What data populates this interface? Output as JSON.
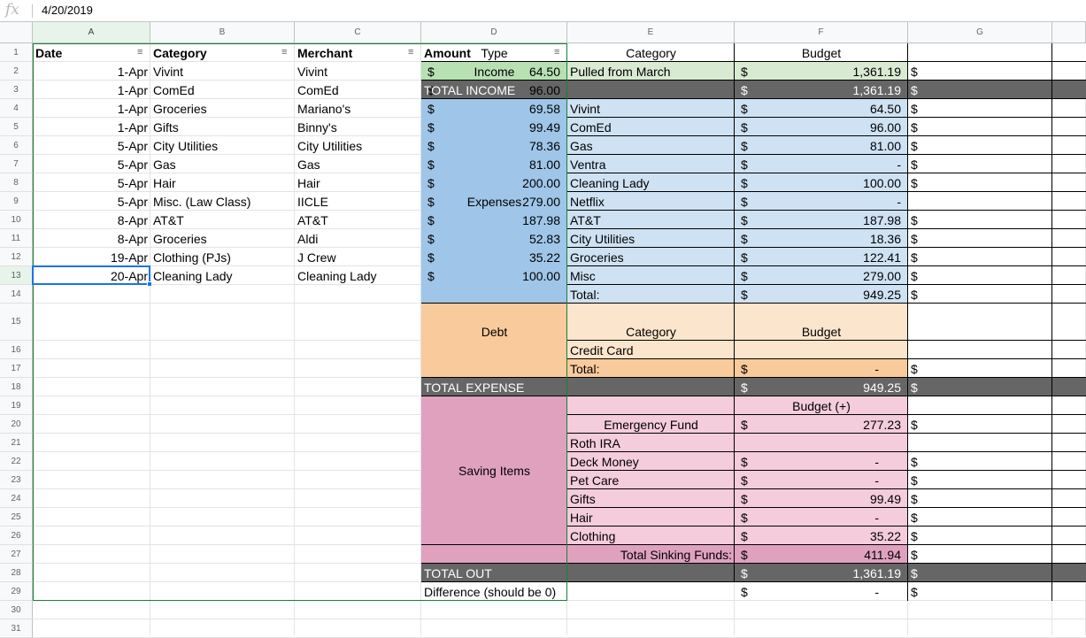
{
  "formula_bar": {
    "fx": "fx",
    "value": "4/20/2019"
  },
  "column_headers": [
    "A",
    "B",
    "C",
    "D",
    "E",
    "F",
    "G"
  ],
  "row_numbers": [
    "1",
    "2",
    "3",
    "4",
    "5",
    "6",
    "7",
    "8",
    "9",
    "10",
    "11",
    "12",
    "13",
    "14",
    "15",
    "16",
    "17",
    "18",
    "19",
    "20",
    "21",
    "22",
    "23",
    "24",
    "25",
    "26",
    "27",
    "28",
    "29",
    "30",
    "31"
  ],
  "colors": {
    "income": "#b7e1b3",
    "income_light": "#d9ead3",
    "gray_bar": "#666666",
    "expenses": "#9fc5e8",
    "expenses_light": "#cfe2f3",
    "debt": "#f9cb9c",
    "debt_light": "#fce5cd",
    "saving": "#e0a1bf",
    "saving_light": "#f4ccdb",
    "selection": "#1a73e8"
  },
  "transactions": {
    "headers": {
      "date": "Date",
      "category": "Category",
      "merchant": "Merchant",
      "amount": "Amount"
    },
    "currency": "$",
    "rows": [
      {
        "date": "1-Apr",
        "category": "Vivint",
        "merchant": "Vivint",
        "amount": "64.50"
      },
      {
        "date": "1-Apr",
        "category": "ComEd",
        "merchant": "ComEd",
        "amount": "96.00"
      },
      {
        "date": "1-Apr",
        "category": "Groceries",
        "merchant": "Mariano's",
        "amount": "69.58"
      },
      {
        "date": "1-Apr",
        "category": "Gifts",
        "merchant": "Binny's",
        "amount": "99.49"
      },
      {
        "date": "5-Apr",
        "category": "City Utilities",
        "merchant": "City Utilities",
        "amount": "78.36"
      },
      {
        "date": "5-Apr",
        "category": "Gas",
        "merchant": "Gas",
        "amount": "81.00"
      },
      {
        "date": "5-Apr",
        "category": "Hair",
        "merchant": "Hair",
        "amount": "200.00"
      },
      {
        "date": "5-Apr",
        "category": "Misc. (Law Class)",
        "merchant": "IICLE",
        "amount": "279.00"
      },
      {
        "date": "8-Apr",
        "category": "AT&T",
        "merchant": "AT&T",
        "amount": "187.98"
      },
      {
        "date": "8-Apr",
        "category": "Groceries",
        "merchant": "Aldi",
        "amount": "52.83"
      },
      {
        "date": "19-Apr",
        "category": "Clothing (PJs)",
        "merchant": "J Crew",
        "amount": "35.22"
      },
      {
        "date": "20-Apr",
        "category": "Cleaning Lady",
        "merchant": "Cleaning Lady",
        "amount": "100.00"
      }
    ]
  },
  "budget": {
    "headers": {
      "type": "Type",
      "category": "Category",
      "budget": "Budget"
    },
    "currency": "$",
    "income": {
      "type": "Income",
      "category": "Pulled from March",
      "budget": "1,361.19"
    },
    "total_income": {
      "label": "TOTAL INCOME",
      "budget": "1,361.19"
    },
    "expenses_label": "Expenses",
    "expenses": [
      {
        "category": "Vivint",
        "budget": "64.50"
      },
      {
        "category": "ComEd",
        "budget": "96.00"
      },
      {
        "category": "Gas",
        "budget": "81.00"
      },
      {
        "category": "Ventra",
        "budget": "-"
      },
      {
        "category": "Cleaning Lady",
        "budget": "100.00"
      },
      {
        "category": "Netflix",
        "budget": "-"
      },
      {
        "category": "AT&T",
        "budget": "187.98"
      },
      {
        "category": "City Utilities",
        "budget": "18.36"
      },
      {
        "category": "Groceries",
        "budget": "122.41"
      },
      {
        "category": "Misc",
        "budget": "279.00"
      },
      {
        "category": "Total:",
        "budget": "949.25"
      }
    ],
    "debt_label": "Debt",
    "debt_headers": {
      "category": "Category",
      "budget": "Budget"
    },
    "debt": [
      {
        "category": "Credit Card",
        "budget": ""
      },
      {
        "category": "Total:",
        "budget": "-"
      }
    ],
    "total_expense": {
      "label": "TOTAL EXPENSE",
      "budget": "949.25"
    },
    "saving_label": "Saving Items",
    "saving_header": "Budget  (+)",
    "saving": [
      {
        "category": "Emergency Fund",
        "budget": "277.23"
      },
      {
        "category": "Roth IRA",
        "budget": ""
      },
      {
        "category": "Deck Money",
        "budget": "-"
      },
      {
        "category": "Pet Care",
        "budget": "-"
      },
      {
        "category": "Gifts",
        "budget": "99.49"
      },
      {
        "category": "Hair",
        "budget": "-"
      },
      {
        "category": "Clothing",
        "budget": "35.22"
      }
    ],
    "total_sinking": {
      "label": "Total Sinking Funds:",
      "budget": "411.94"
    },
    "total_out": {
      "label": "TOTAL OUT",
      "budget": "1,361.19"
    },
    "difference": {
      "label": "Difference (should be 0)",
      "budget": "-"
    }
  }
}
